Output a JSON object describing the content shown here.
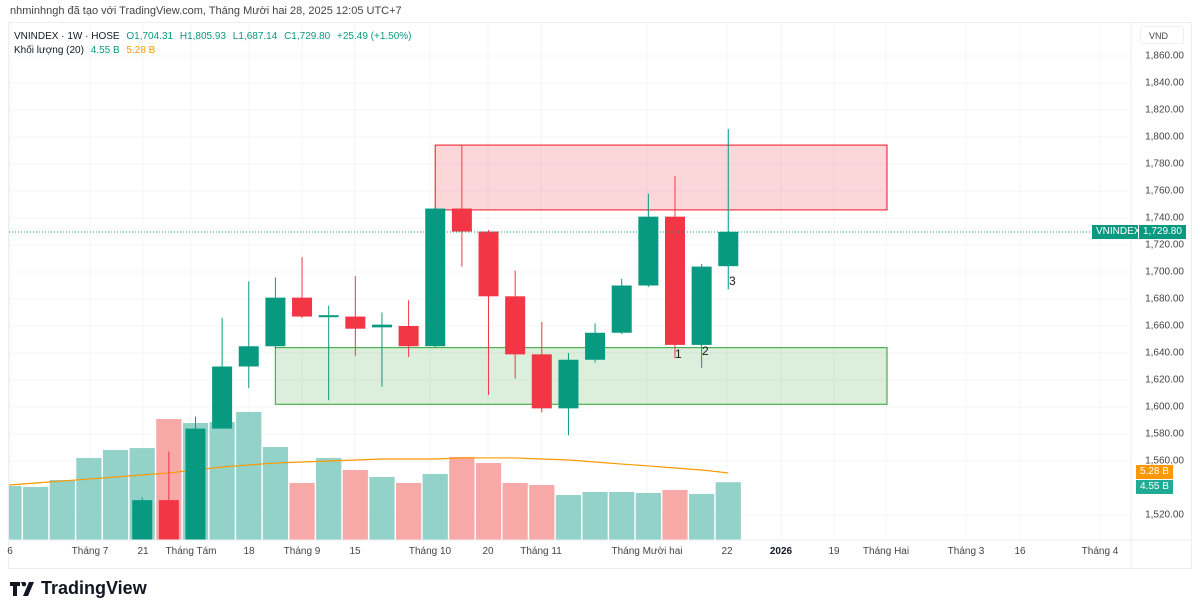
{
  "attribution": "nhminhngh đã tạo với TradingView.com, Tháng Mười hai 28, 2025 12:05 UTC+7",
  "legend": {
    "symbol": "VNINDEX · 1W · HOSE",
    "open": "O1,704.31",
    "high": "H1,805.93",
    "low": "L1,687.14",
    "close": "C1,729.80",
    "change": "+25.49 (+1.50%)",
    "volume_label": "Khối lượng (20)",
    "volume_value": "4.55 B",
    "volume_ma_value": "5.28 B"
  },
  "price_axis": {
    "currency": "VND",
    "ticks": [
      "1,860.00",
      "1,840.00",
      "1,820.00",
      "1,800.00",
      "1,780.00",
      "1,760.00",
      "1,740.00",
      "1,720.00",
      "1,700.00",
      "1,680.00",
      "1,660.00",
      "1,640.00",
      "1,620.00",
      "1,600.00",
      "1,580.00",
      "1,560.00",
      "1,520.00"
    ],
    "last_symbol_tag": "VNINDEX",
    "last_price_tag": "1,729.80",
    "volume_ma_tag": "5.28 B",
    "volume_tag": "4.55 B"
  },
  "time_axis": {
    "labels": [
      "6",
      "Tháng 7",
      "21",
      "Tháng Tám",
      "18",
      "Tháng 9",
      "15",
      "Tháng 10",
      "20",
      "Tháng 11",
      "Tháng Mười hai",
      "22",
      "2026",
      "19",
      "Tháng Hai",
      "Tháng 3",
      "16",
      "Tháng 4"
    ]
  },
  "annotations": [
    "1",
    "2",
    "3"
  ],
  "footer": {
    "brand": "TradingView"
  },
  "colors": {
    "up": "#089981",
    "down": "#F23645",
    "volume_ma": "#FF9800",
    "resistance_zone": "#F23645",
    "support_zone": "#4CAF50"
  },
  "chart_data": {
    "type": "candlestick",
    "symbol": "VNINDEX",
    "interval": "1W",
    "y_range": [
      1505,
      1870
    ],
    "grid": true,
    "last_price": 1729.8,
    "weeks": [
      "2025-06-16",
      "2025-06-23",
      "2025-06-30",
      "2025-07-07",
      "2025-07-14",
      "2025-07-21",
      "2025-07-28",
      "2025-08-04",
      "2025-08-11",
      "2025-08-18",
      "2025-08-25",
      "2025-09-01",
      "2025-09-08",
      "2025-09-15",
      "2025-09-22",
      "2025-09-29",
      "2025-10-06",
      "2025-10-13",
      "2025-10-20",
      "2025-10-27",
      "2025-11-03",
      "2025-11-10",
      "2025-11-17",
      "2025-11-24",
      "2025-12-01",
      "2025-12-08",
      "2025-12-15",
      "2025-12-22"
    ],
    "candles": [
      {
        "week": "2025-07-21",
        "o": 1500,
        "h": 1533,
        "l": 1495,
        "c": 1531
      },
      {
        "week": "2025-07-28",
        "o": 1531,
        "h": 1567,
        "l": 1495,
        "c": 1500
      },
      {
        "week": "2025-08-04",
        "o": 1500,
        "h": 1593,
        "l": 1495,
        "c": 1584
      },
      {
        "week": "2025-08-11",
        "o": 1584,
        "h": 1666,
        "l": 1584,
        "c": 1630
      },
      {
        "week": "2025-08-18",
        "o": 1630,
        "h": 1693,
        "l": 1614,
        "c": 1645
      },
      {
        "week": "2025-08-25",
        "o": 1645,
        "h": 1696,
        "l": 1643,
        "c": 1681
      },
      {
        "week": "2025-09-01",
        "o": 1681,
        "h": 1711,
        "l": 1666,
        "c": 1667
      },
      {
        "week": "2025-09-08",
        "o": 1667,
        "h": 1675,
        "l": 1605,
        "c": 1668
      },
      {
        "week": "2025-09-15",
        "o": 1667,
        "h": 1697,
        "l": 1638,
        "c": 1658
      },
      {
        "week": "2025-09-22",
        "o": 1659,
        "h": 1670,
        "l": 1615,
        "c": 1661
      },
      {
        "week": "2025-09-29",
        "o": 1660,
        "h": 1679,
        "l": 1637,
        "c": 1645
      },
      {
        "week": "2025-10-06",
        "o": 1645,
        "h": 1748,
        "l": 1644,
        "c": 1747
      },
      {
        "week": "2025-10-13",
        "o": 1747,
        "h": 1794,
        "l": 1704,
        "c": 1730
      },
      {
        "week": "2025-10-20",
        "o": 1730,
        "h": 1731,
        "l": 1609,
        "c": 1682
      },
      {
        "week": "2025-10-27",
        "o": 1682,
        "h": 1701,
        "l": 1621,
        "c": 1639
      },
      {
        "week": "2025-11-03",
        "o": 1639,
        "h": 1663,
        "l": 1596,
        "c": 1599
      },
      {
        "week": "2025-11-10",
        "o": 1599,
        "h": 1640,
        "l": 1579,
        "c": 1635
      },
      {
        "week": "2025-11-17",
        "o": 1635,
        "h": 1662,
        "l": 1633,
        "c": 1655
      },
      {
        "week": "2025-11-24",
        "o": 1655,
        "h": 1695,
        "l": 1654,
        "c": 1690
      },
      {
        "week": "2025-12-01",
        "o": 1690,
        "h": 1758,
        "l": 1689,
        "c": 1741
      },
      {
        "week": "2025-12-08",
        "o": 1741,
        "h": 1771,
        "l": 1636,
        "c": 1646
      },
      {
        "week": "2025-12-15",
        "o": 1646,
        "h": 1706,
        "l": 1629,
        "c": 1704
      },
      {
        "week": "2025-12-22",
        "o": 1704.31,
        "h": 1805.93,
        "l": 1687.14,
        "c": 1729.8
      }
    ],
    "volume_billions": [
      4.25,
      4.17,
      4.72,
      6.46,
      7.09,
      7.24,
      9.53,
      9.21,
      9.29,
      10.08,
      7.32,
      4.49,
      6.46,
      5.51,
      4.96,
      4.49,
      5.2,
      6.54,
      6.06,
      4.49,
      4.33,
      3.54,
      3.78,
      3.78,
      3.7,
      3.94,
      3.62,
      4.55
    ],
    "volume_ma20_billions": [
      4.33,
      4.49,
      4.65,
      4.8,
      4.96,
      5.12,
      5.28,
      5.51,
      5.75,
      5.91,
      6.06,
      6.14,
      6.22,
      6.3,
      6.38,
      6.38,
      6.38,
      6.46,
      6.46,
      6.46,
      6.38,
      6.3,
      6.14,
      5.98,
      5.83,
      5.67,
      5.51,
      5.28
    ],
    "zones": [
      {
        "kind": "resistance",
        "from_week": "2025-10-06",
        "price_top": 1794,
        "price_bottom": 1746
      },
      {
        "kind": "support",
        "from_week": "2025-08-25",
        "price_top": 1644,
        "price_bottom": 1602
      }
    ],
    "labels_on_candles": [
      {
        "text": "1",
        "week": "2025-12-08"
      },
      {
        "text": "2",
        "week": "2025-12-15"
      },
      {
        "text": "3",
        "week": "2025-12-22"
      }
    ]
  }
}
